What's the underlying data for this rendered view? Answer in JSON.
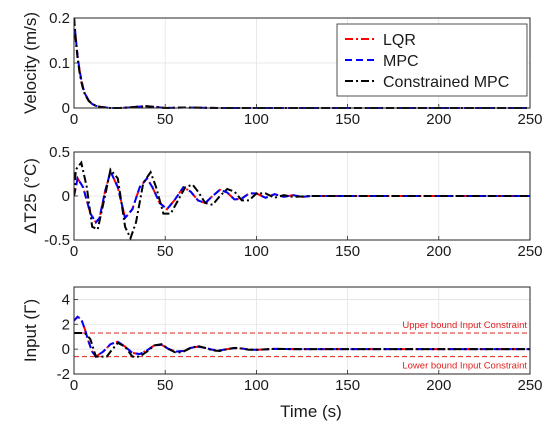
{
  "figure": {
    "xlabel": "Time (s)"
  },
  "chart_data": [
    {
      "type": "line",
      "ylabel": "Velocity (m/s)",
      "xlim": [
        0,
        250
      ],
      "ylim": [
        0,
        0.2
      ],
      "xticks": [
        0,
        50,
        100,
        150,
        200,
        250
      ],
      "yticks": [
        0,
        0.1,
        0.2
      ],
      "grid": true,
      "legend": "top-right",
      "series": [
        {
          "name": "LQR",
          "color": "#ff0000",
          "dash": "dashdot",
          "x": [
            0,
            1,
            2,
            3,
            4,
            5,
            6,
            8,
            10,
            12,
            15,
            20,
            25,
            30,
            35,
            40,
            45,
            50,
            60,
            80,
            100,
            150,
            200,
            250
          ],
          "y": [
            0.2,
            0.155,
            0.115,
            0.085,
            0.063,
            0.045,
            0.032,
            0.017,
            0.009,
            0.005,
            0.002,
            0.0,
            0.0,
            0.001,
            0.003,
            0.004,
            0.002,
            0.0,
            0.001,
            0.0,
            0.0,
            0.0,
            0.0,
            0.0
          ]
        },
        {
          "name": "MPC",
          "color": "#0000ff",
          "dash": "dashed",
          "x": [
            0,
            1,
            2,
            3,
            4,
            5,
            6,
            8,
            10,
            12,
            15,
            20,
            25,
            30,
            35,
            40,
            45,
            50,
            60,
            80,
            100,
            150,
            200,
            250
          ],
          "y": [
            0.2,
            0.155,
            0.115,
            0.085,
            0.063,
            0.045,
            0.032,
            0.017,
            0.009,
            0.005,
            0.002,
            0.0,
            0.0,
            0.001,
            0.003,
            0.004,
            0.002,
            0.0,
            0.001,
            0.0,
            0.0,
            0.0,
            0.0,
            0.0
          ]
        },
        {
          "name": "Constrained MPC",
          "color": "#000000",
          "dash": "dashdot",
          "x": [
            0,
            1,
            2,
            3,
            4,
            5,
            6,
            8,
            10,
            12,
            15,
            20,
            25,
            30,
            35,
            40,
            45,
            50,
            60,
            80,
            100,
            150,
            200,
            250
          ],
          "y": [
            0.2,
            0.15,
            0.11,
            0.08,
            0.058,
            0.042,
            0.03,
            0.016,
            0.009,
            0.005,
            0.002,
            0.0,
            0.0,
            0.001,
            0.003,
            0.004,
            0.002,
            0.0,
            0.001,
            0.0,
            0.0,
            0.0,
            0.0,
            0.0
          ]
        }
      ]
    },
    {
      "type": "line",
      "ylabel": "ΔT25 (°C)",
      "xlim": [
        0,
        250
      ],
      "ylim": [
        -0.5,
        0.5
      ],
      "xticks": [
        0,
        50,
        100,
        150,
        200,
        250
      ],
      "yticks": [
        -0.5,
        0,
        0.5
      ],
      "grid": true,
      "series": [
        {
          "name": "LQR",
          "color": "#ff0000",
          "dash": "dashdot",
          "x": [
            0,
            2,
            5,
            9,
            12,
            14,
            17,
            20,
            24,
            28,
            32,
            36,
            40,
            43,
            47,
            51,
            55,
            60,
            64,
            68,
            72,
            76,
            80,
            84,
            88,
            92,
            96,
            100,
            105,
            110,
            115,
            120,
            125,
            130,
            140,
            150,
            175,
            200,
            250
          ],
          "y": [
            0.0,
            0.2,
            0.1,
            -0.2,
            -0.3,
            -0.25,
            0.05,
            0.28,
            0.1,
            -0.25,
            -0.15,
            0.1,
            0.2,
            0.1,
            -0.08,
            -0.15,
            -0.05,
            0.1,
            0.05,
            -0.05,
            -0.08,
            0.0,
            0.07,
            0.04,
            -0.04,
            -0.03,
            0.03,
            0.03,
            -0.02,
            0.02,
            -0.01,
            0.01,
            -0.01,
            0.0,
            0.0,
            0.0,
            0.0,
            0.0,
            0.0
          ]
        },
        {
          "name": "MPC",
          "color": "#0000ff",
          "dash": "dashed",
          "x": [
            0,
            2,
            5,
            9,
            12,
            14,
            17,
            20,
            24,
            28,
            32,
            36,
            40,
            43,
            47,
            51,
            55,
            60,
            64,
            68,
            72,
            76,
            80,
            84,
            88,
            92,
            96,
            100,
            105,
            110,
            115,
            120,
            125,
            130,
            140,
            150,
            175,
            200,
            250
          ],
          "y": [
            0.0,
            0.2,
            0.1,
            -0.2,
            -0.3,
            -0.25,
            0.05,
            0.28,
            0.1,
            -0.25,
            -0.15,
            0.1,
            0.2,
            0.1,
            -0.08,
            -0.15,
            -0.05,
            0.1,
            0.05,
            -0.05,
            -0.08,
            0.0,
            0.07,
            0.04,
            -0.04,
            -0.03,
            0.03,
            0.03,
            -0.02,
            0.02,
            -0.01,
            0.01,
            -0.01,
            0.0,
            0.0,
            0.0,
            0.0,
            0.0,
            0.0
          ]
        },
        {
          "name": "Constrained MPC",
          "color": "#000000",
          "dash": "dashdot",
          "x": [
            0,
            1,
            4,
            7,
            10,
            13,
            17,
            20,
            24,
            28,
            31,
            34,
            38,
            42,
            45,
            49,
            53,
            57,
            61,
            65,
            68,
            72,
            76,
            80,
            84,
            88,
            92,
            96,
            100,
            105,
            110,
            115,
            120,
            130,
            140,
            150,
            175,
            200,
            250
          ],
          "y": [
            0.0,
            0.3,
            0.38,
            0.1,
            -0.35,
            -0.38,
            0.0,
            0.3,
            0.2,
            -0.35,
            -0.48,
            -0.3,
            0.15,
            0.27,
            0.1,
            -0.2,
            -0.2,
            -0.05,
            0.1,
            0.13,
            0.05,
            -0.08,
            -0.1,
            0.0,
            0.08,
            0.05,
            -0.05,
            -0.05,
            0.03,
            0.03,
            -0.02,
            0.01,
            -0.01,
            0.0,
            0.0,
            0.0,
            0.0,
            0.0,
            0.0
          ]
        }
      ]
    },
    {
      "type": "line",
      "ylabel": "Input (Γ)",
      "xlim": [
        0,
        250
      ],
      "ylim": [
        -2,
        5
      ],
      "xticks": [
        0,
        50,
        100,
        150,
        200,
        250
      ],
      "yticks": [
        -2,
        0,
        2,
        4
      ],
      "grid": true,
      "bounds": [
        {
          "value": 1.3,
          "label": "Upper bound Input Constraint",
          "color": "#e0201f"
        },
        {
          "value": -0.6,
          "label": "Lower bound Input Constraint",
          "color": "#e0201f"
        }
      ],
      "series": [
        {
          "name": "LQR",
          "color": "#ff0000",
          "dash": "dashdot",
          "x": [
            0,
            2,
            4,
            6,
            8,
            10,
            12,
            14,
            16,
            20,
            24,
            28,
            32,
            36,
            40,
            44,
            48,
            52,
            56,
            60,
            64,
            68,
            72,
            76,
            80,
            84,
            88,
            92,
            96,
            100,
            110,
            120,
            130,
            150,
            200,
            250
          ],
          "y": [
            2.3,
            2.6,
            2.4,
            1.6,
            0.6,
            -0.2,
            -0.6,
            -0.4,
            -0.2,
            0.4,
            0.6,
            0.2,
            -0.3,
            -0.4,
            -0.1,
            0.3,
            0.35,
            0.0,
            -0.2,
            -0.15,
            0.1,
            0.2,
            0.1,
            -0.05,
            -0.1,
            0.0,
            0.08,
            0.05,
            -0.03,
            -0.05,
            0.02,
            0.0,
            0.0,
            0.0,
            0.0,
            0.0
          ]
        },
        {
          "name": "MPC",
          "color": "#0000ff",
          "dash": "dashed",
          "x": [
            0,
            2,
            4,
            6,
            8,
            10,
            12,
            14,
            16,
            20,
            24,
            28,
            32,
            36,
            40,
            44,
            48,
            52,
            56,
            60,
            64,
            68,
            72,
            76,
            80,
            84,
            88,
            92,
            96,
            100,
            110,
            120,
            130,
            150,
            200,
            250
          ],
          "y": [
            2.3,
            2.6,
            2.4,
            1.6,
            0.6,
            -0.2,
            -0.6,
            -0.4,
            -0.2,
            0.4,
            0.6,
            0.2,
            -0.3,
            -0.4,
            -0.1,
            0.3,
            0.35,
            0.0,
            -0.2,
            -0.15,
            0.1,
            0.2,
            0.1,
            -0.05,
            -0.1,
            0.0,
            0.08,
            0.05,
            -0.03,
            -0.05,
            0.02,
            0.0,
            0.0,
            0.0,
            0.0,
            0.0
          ]
        },
        {
          "name": "Constrained MPC",
          "color": "#000000",
          "dash": "dashdot",
          "x": [
            0,
            1,
            6,
            9,
            12,
            15,
            18,
            20,
            24,
            28,
            32,
            36,
            40,
            44,
            48,
            52,
            56,
            60,
            64,
            68,
            72,
            76,
            80,
            84,
            88,
            92,
            96,
            100,
            110,
            120,
            130,
            150,
            200,
            250
          ],
          "y": [
            1.3,
            1.3,
            1.3,
            0.8,
            -0.6,
            -0.6,
            -0.6,
            -0.2,
            0.5,
            0.2,
            -0.6,
            -0.6,
            -0.2,
            0.3,
            0.4,
            0.0,
            -0.3,
            -0.2,
            0.1,
            0.25,
            0.1,
            -0.1,
            -0.15,
            0.0,
            0.1,
            0.05,
            -0.05,
            -0.05,
            0.02,
            0.0,
            0.0,
            0.0,
            0.0,
            0.0
          ]
        }
      ]
    }
  ]
}
